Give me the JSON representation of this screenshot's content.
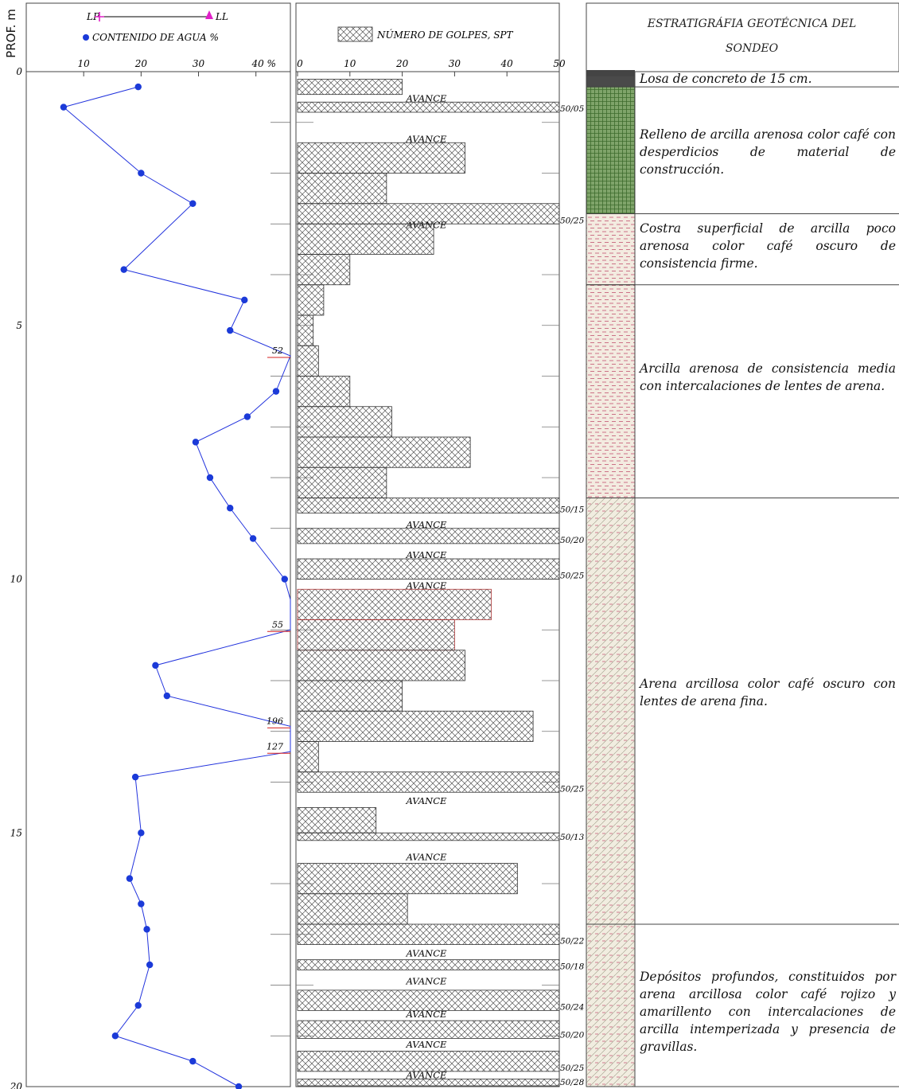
{
  "depth_axis": {
    "title": "PROF. m",
    "range": [
      0,
      20
    ],
    "labels": [
      "0",
      "5",
      "10",
      "15",
      "20"
    ]
  },
  "panel_water": {
    "legend_lp": "LP",
    "legend_ll": "LL",
    "legend_water": "CONTENIDO DE AGUA  %",
    "tick_labels": [
      "10",
      "20",
      "30",
      "40 %"
    ],
    "offscale_labels": [
      {
        "depth": 5.6,
        "text": "52"
      },
      {
        "depth": 11.0,
        "text": "55"
      },
      {
        "depth": 12.9,
        "text": "196"
      },
      {
        "depth": 13.4,
        "text": "127"
      }
    ]
  },
  "panel_spt": {
    "legend": "NÚMERO DE GOLPES, SPT",
    "tick_labels": [
      "0",
      "10",
      "20",
      "30",
      "40",
      "50"
    ],
    "avance_label": "AVANCE"
  },
  "panel_strat": {
    "title_line1": "ESTRATIGRÁFIA GEOTÉCNICA DEL",
    "title_line2": "SONDEO",
    "layers": [
      {
        "top": 0.0,
        "bottom": 0.3,
        "text": "Losa de concreto de 15 cm."
      },
      {
        "top": 0.3,
        "bottom": 2.8,
        "text": "Relleno de arcilla arenosa color café con desperdicios de material de construcción."
      },
      {
        "top": 2.8,
        "bottom": 4.2,
        "text": "Costra superficial de arcilla poco arenosa color café oscuro de consistencia firme."
      },
      {
        "top": 4.2,
        "bottom": 8.4,
        "text": "Arcilla arenosa de consistencia media con intercalaciones de lentes de arena."
      },
      {
        "top": 8.4,
        "bottom": 16.8,
        "text": "Arena arcillosa  color café oscuro con lentes  de arena fina."
      },
      {
        "top": 16.8,
        "bottom": 20.0,
        "text": "Depósitos profundos, constituidos por arena arcillosa color café rojizo y amarillento con intercalaciones de arcilla intemperizada y presencia de gravillas."
      }
    ]
  },
  "chart_data": {
    "type": "scatter",
    "xlabel": "CONTENIDO DE AGUA  %",
    "ylabel": "PROF. m",
    "ylim": [
      0,
      20
    ],
    "water_content": {
      "name": "CONTENIDO DE AGUA  %",
      "xlim": [
        0,
        46
      ],
      "points": [
        [
          0.3,
          19.5
        ],
        [
          0.7,
          6.5
        ],
        [
          2.0,
          20
        ],
        [
          2.6,
          29
        ],
        [
          3.9,
          17
        ],
        [
          4.5,
          38
        ],
        [
          5.1,
          35.5
        ],
        [
          5.6,
          52
        ],
        [
          6.3,
          43.5
        ],
        [
          6.8,
          38.5
        ],
        [
          7.3,
          29.5
        ],
        [
          8.0,
          32
        ],
        [
          8.6,
          35.5
        ],
        [
          9.2,
          39.5
        ],
        [
          10.0,
          45
        ],
        [
          10.4,
          51
        ],
        [
          11.0,
          55
        ],
        [
          11.7,
          22.5
        ],
        [
          12.3,
          24.5
        ],
        [
          12.9,
          196
        ],
        [
          13.4,
          127
        ],
        [
          13.9,
          19
        ],
        [
          15.0,
          20
        ],
        [
          15.9,
          18
        ],
        [
          16.4,
          20
        ],
        [
          16.9,
          21
        ],
        [
          17.6,
          21.5
        ],
        [
          18.4,
          19.5
        ],
        [
          19.0,
          15.5
        ],
        [
          19.5,
          29
        ],
        [
          20.0,
          37
        ]
      ]
    },
    "spt": {
      "name": "NÚMERO DE GOLPES, SPT",
      "xlim": [
        0,
        50
      ],
      "intervals": [
        {
          "top": 0.15,
          "bottom": 0.45,
          "blows": 20
        },
        {
          "top": 0.45,
          "bottom": 0.6,
          "label": "AVANCE"
        },
        {
          "top": 0.6,
          "bottom": 0.8,
          "blows": 50,
          "note": "50/05"
        },
        {
          "top": 1.2,
          "bottom": 1.4,
          "label": "AVANCE"
        },
        {
          "top": 1.4,
          "bottom": 2.0,
          "blows": 32
        },
        {
          "top": 2.0,
          "bottom": 2.6,
          "blows": 17
        },
        {
          "top": 2.6,
          "bottom": 3.0,
          "blows": 50,
          "note": "50/25"
        },
        {
          "top": 2.95,
          "bottom": 3.1,
          "label": "AVANCE"
        },
        {
          "top": 3.0,
          "bottom": 3.6,
          "blows": 26
        },
        {
          "top": 3.6,
          "bottom": 4.2,
          "blows": 10
        },
        {
          "top": 4.2,
          "bottom": 4.8,
          "blows": 5
        },
        {
          "top": 4.8,
          "bottom": 5.4,
          "blows": 3
        },
        {
          "top": 5.4,
          "bottom": 6.0,
          "blows": 4
        },
        {
          "top": 6.0,
          "bottom": 6.6,
          "blows": 10
        },
        {
          "top": 6.6,
          "bottom": 7.2,
          "blows": 18
        },
        {
          "top": 7.2,
          "bottom": 7.8,
          "blows": 33
        },
        {
          "top": 7.8,
          "bottom": 8.4,
          "blows": 17
        },
        {
          "top": 8.4,
          "bottom": 8.7,
          "blows": 50,
          "note": "50/15"
        },
        {
          "top": 8.85,
          "bottom": 9.0,
          "label": "AVANCE"
        },
        {
          "top": 9.0,
          "bottom": 9.3,
          "blows": 50,
          "note": "50/20"
        },
        {
          "top": 9.45,
          "bottom": 9.6,
          "label": "AVANCE"
        },
        {
          "top": 9.6,
          "bottom": 10.0,
          "blows": 50,
          "note": "50/25"
        },
        {
          "top": 10.05,
          "bottom": 10.2,
          "label": "AVANCE"
        },
        {
          "top": 10.2,
          "bottom": 10.8,
          "blows": 37
        },
        {
          "top": 10.8,
          "bottom": 11.4,
          "blows": 30
        },
        {
          "top": 11.4,
          "bottom": 12.0,
          "blows": 32
        },
        {
          "top": 12.0,
          "bottom": 12.6,
          "blows": 20
        },
        {
          "top": 12.6,
          "bottom": 13.2,
          "blows": 45
        },
        {
          "top": 13.2,
          "bottom": 13.8,
          "blows": 4
        },
        {
          "top": 13.8,
          "bottom": 14.2,
          "blows": 50,
          "note": "50/25"
        },
        {
          "top": 14.3,
          "bottom": 14.45,
          "label": "AVANCE"
        },
        {
          "top": 14.5,
          "bottom": 15.0,
          "blows": 15
        },
        {
          "top": 15.0,
          "bottom": 15.15,
          "blows": 50,
          "note": "50/13"
        },
        {
          "top": 15.4,
          "bottom": 15.55,
          "label": "AVANCE"
        },
        {
          "top": 15.6,
          "bottom": 16.2,
          "blows": 42
        },
        {
          "top": 16.2,
          "bottom": 16.8,
          "blows": 21
        },
        {
          "top": 16.8,
          "bottom": 17.2,
          "blows": 50,
          "note": "50/22"
        },
        {
          "top": 17.3,
          "bottom": 17.45,
          "label": "AVANCE"
        },
        {
          "top": 17.5,
          "bottom": 17.7,
          "blows": 50,
          "note": "50/18"
        },
        {
          "top": 17.85,
          "bottom": 18.0,
          "label": "AVANCE"
        },
        {
          "top": 18.1,
          "bottom": 18.5,
          "blows": 50,
          "note": "50/24"
        },
        {
          "top": 18.5,
          "bottom": 18.65,
          "label": "AVANCE"
        },
        {
          "top": 18.7,
          "bottom": 19.05,
          "blows": 50,
          "note": "50/20"
        },
        {
          "top": 19.1,
          "bottom": 19.25,
          "label": "AVANCE"
        },
        {
          "top": 19.3,
          "bottom": 19.7,
          "blows": 50,
          "note": "50/25"
        },
        {
          "top": 19.7,
          "bottom": 19.85,
          "label": "AVANCE"
        },
        {
          "top": 19.85,
          "bottom": 20.2,
          "blows": 50,
          "note": "50/28"
        }
      ]
    }
  }
}
